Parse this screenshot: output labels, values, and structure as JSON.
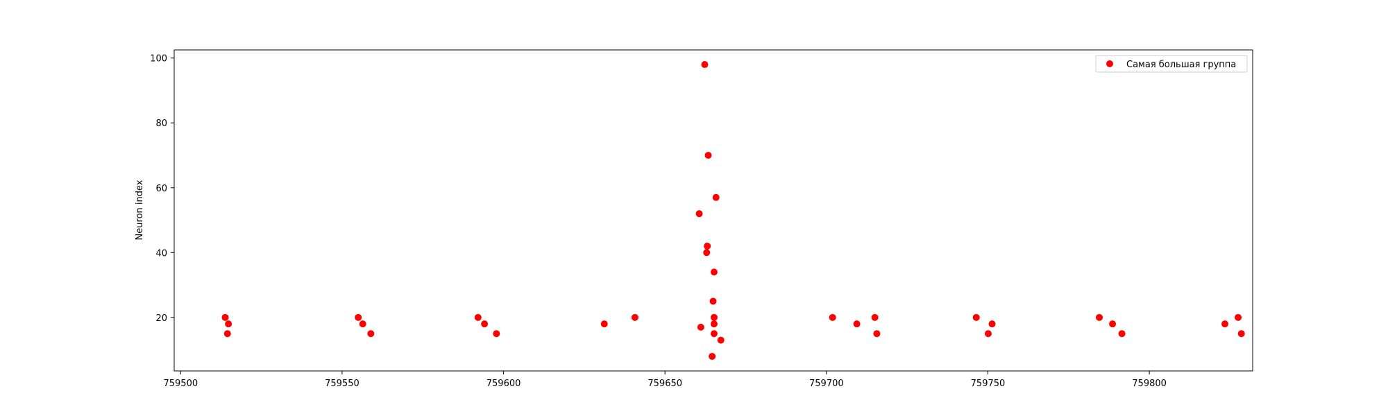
{
  "chart_data": {
    "type": "scatter",
    "title": "",
    "xlabel": "",
    "ylabel": "Neuron index",
    "xlim": [
      759498,
      759832
    ],
    "ylim": [
      3.5,
      102.5
    ],
    "xticks": [
      759500,
      759550,
      759600,
      759650,
      759700,
      759750,
      759800
    ],
    "yticks": [
      20,
      40,
      60,
      80,
      100
    ],
    "grid": false,
    "legend": {
      "position": "top-right"
    },
    "series": [
      {
        "name": "Самая большая группа",
        "color": "#ff0000",
        "marker": "circle",
        "points": [
          {
            "x": 759513.8,
            "y": 20
          },
          {
            "x": 759514.8,
            "y": 18
          },
          {
            "x": 759514.5,
            "y": 15
          },
          {
            "x": 759555.0,
            "y": 20
          },
          {
            "x": 759556.4,
            "y": 18
          },
          {
            "x": 759558.9,
            "y": 15
          },
          {
            "x": 759592.1,
            "y": 20
          },
          {
            "x": 759594.1,
            "y": 18
          },
          {
            "x": 759597.8,
            "y": 15
          },
          {
            "x": 759631.2,
            "y": 18
          },
          {
            "x": 759640.7,
            "y": 20
          },
          {
            "x": 759662.3,
            "y": 98
          },
          {
            "x": 759663.4,
            "y": 70
          },
          {
            "x": 759665.8,
            "y": 57
          },
          {
            "x": 759660.6,
            "y": 52
          },
          {
            "x": 759663.1,
            "y": 42
          },
          {
            "x": 759662.9,
            "y": 40
          },
          {
            "x": 759665.2,
            "y": 34
          },
          {
            "x": 759664.9,
            "y": 25
          },
          {
            "x": 759665.2,
            "y": 20
          },
          {
            "x": 759665.2,
            "y": 18
          },
          {
            "x": 759661.1,
            "y": 17
          },
          {
            "x": 759665.2,
            "y": 15
          },
          {
            "x": 759667.3,
            "y": 13
          },
          {
            "x": 759664.6,
            "y": 8
          },
          {
            "x": 759701.9,
            "y": 20
          },
          {
            "x": 759709.4,
            "y": 18
          },
          {
            "x": 759715.0,
            "y": 20
          },
          {
            "x": 759715.6,
            "y": 15
          },
          {
            "x": 759746.4,
            "y": 20
          },
          {
            "x": 759750.1,
            "y": 15
          },
          {
            "x": 759751.3,
            "y": 18
          },
          {
            "x": 759784.5,
            "y": 20
          },
          {
            "x": 759788.6,
            "y": 18
          },
          {
            "x": 759791.5,
            "y": 15
          },
          {
            "x": 759823.4,
            "y": 18
          },
          {
            "x": 759827.5,
            "y": 20
          },
          {
            "x": 759828.5,
            "y": 15
          }
        ]
      }
    ]
  }
}
